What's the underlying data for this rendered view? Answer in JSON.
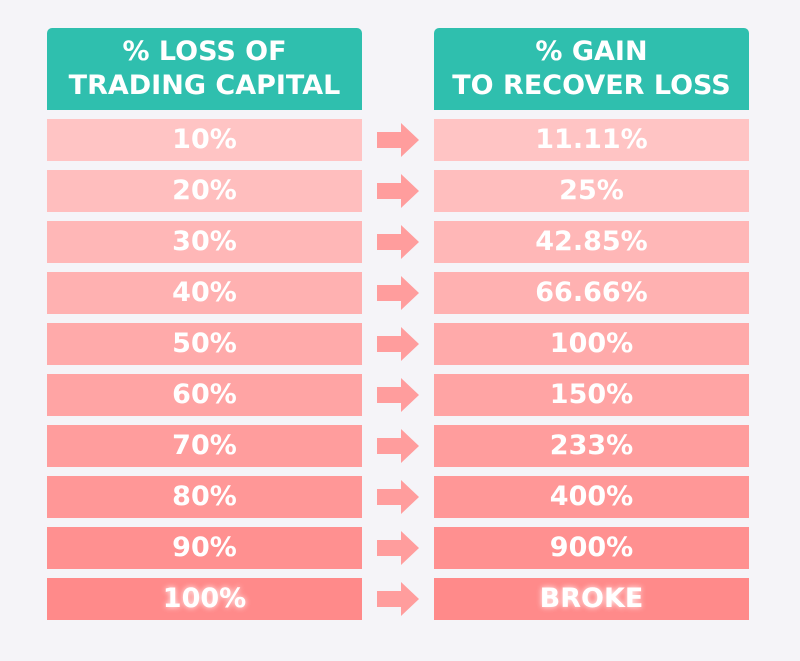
{
  "table": {
    "headers": [
      [
        "% LOSS OF",
        "TRADING CAPITAL"
      ],
      [
        "% GAIN",
        "TO RECOVER LOSS"
      ]
    ],
    "rows": [
      [
        "10%",
        "11.11%"
      ],
      [
        "20%",
        "25%"
      ],
      [
        "30%",
        "42.85%"
      ],
      [
        "40%",
        "66.66%"
      ],
      [
        "50%",
        "100%"
      ],
      [
        "60%",
        "150%"
      ],
      [
        "70%",
        "233%"
      ],
      [
        "80%",
        "400%"
      ],
      [
        "90%",
        "900%"
      ],
      [
        "100%",
        "BROKE"
      ]
    ]
  }
}
